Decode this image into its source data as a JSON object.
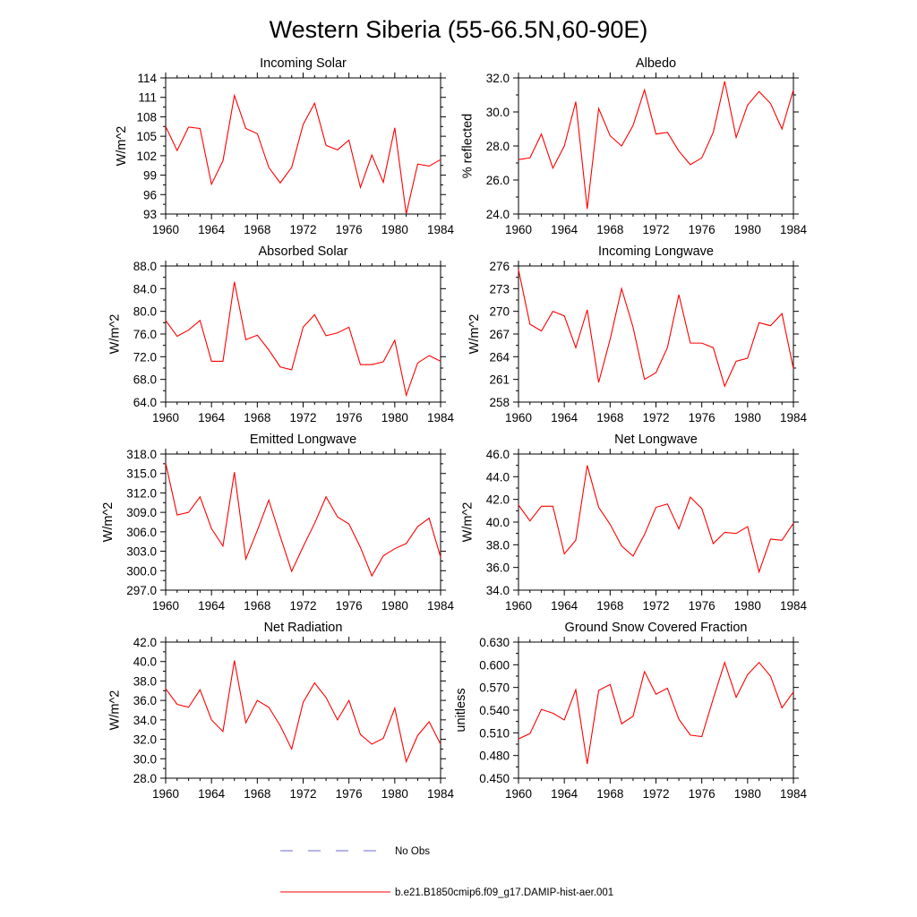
{
  "figure": {
    "title": "Western Siberia (55-66.5N,60-90E)"
  },
  "legend": {
    "items": [
      {
        "label": "No Obs",
        "color": "#6a6ad8",
        "style": "dashed"
      },
      {
        "label": "b.e21.B1850cmip6.f09_g17.DAMIP-hist-aer.001",
        "color": "#ff0000",
        "style": "solid"
      }
    ]
  },
  "chart_data": [
    {
      "type": "line",
      "title": "Incoming Solar",
      "xlabel": "",
      "ylabel": "W/m^2",
      "xlim": [
        1960,
        1984
      ],
      "ylim": [
        93,
        114
      ],
      "xticks": [
        "1960",
        "1964",
        "1968",
        "1972",
        "1976",
        "1980",
        "1984"
      ],
      "yticks": [
        "93",
        "96",
        "99",
        "102",
        "105",
        "108",
        "111",
        "114"
      ],
      "x": [
        1960,
        1961,
        1962,
        1963,
        1964,
        1965,
        1966,
        1967,
        1968,
        1969,
        1970,
        1971,
        1972,
        1973,
        1974,
        1975,
        1976,
        1977,
        1978,
        1979,
        1980,
        1981,
        1982,
        1983,
        1984
      ],
      "series": [
        {
          "color": "#ff0000",
          "values": [
            106.5,
            102.8,
            106.4,
            106.2,
            97.6,
            101.2,
            111.3,
            106.2,
            105.4,
            100.2,
            97.8,
            100.2,
            106.8,
            110.1,
            103.6,
            102.9,
            104.4,
            97.1,
            102.1,
            97.9,
            106.3,
            93.0,
            100.7,
            100.4,
            101.4
          ]
        }
      ]
    },
    {
      "type": "line",
      "title": "Albedo",
      "xlabel": "",
      "ylabel": "% reflected",
      "xlim": [
        1960,
        1984
      ],
      "ylim": [
        24.0,
        32.0
      ],
      "xticks": [
        "1960",
        "1964",
        "1968",
        "1972",
        "1976",
        "1980",
        "1984"
      ],
      "yticks": [
        "24.0",
        "26.0",
        "28.0",
        "30.0",
        "32.0"
      ],
      "x": [
        1960,
        1961,
        1962,
        1963,
        1964,
        1965,
        1966,
        1967,
        1968,
        1969,
        1970,
        1971,
        1972,
        1973,
        1974,
        1975,
        1976,
        1977,
        1978,
        1979,
        1980,
        1981,
        1982,
        1983,
        1984
      ],
      "series": [
        {
          "color": "#ff0000",
          "values": [
            27.2,
            27.3,
            28.7,
            26.7,
            28.0,
            30.6,
            24.3,
            30.2,
            28.6,
            28.0,
            29.2,
            31.3,
            28.7,
            28.8,
            27.7,
            26.9,
            27.3,
            28.8,
            31.8,
            28.5,
            30.4,
            31.2,
            30.5,
            29.0,
            31.3
          ]
        }
      ]
    },
    {
      "type": "line",
      "title": "Absorbed Solar",
      "xlabel": "",
      "ylabel": "W/m^2",
      "xlim": [
        1960,
        1984
      ],
      "ylim": [
        64.0,
        88.0
      ],
      "xticks": [
        "1960",
        "1964",
        "1968",
        "1972",
        "1976",
        "1980",
        "1984"
      ],
      "yticks": [
        "64.0",
        "68.0",
        "72.0",
        "76.0",
        "80.0",
        "84.0",
        "88.0"
      ],
      "x": [
        1960,
        1961,
        1962,
        1963,
        1964,
        1965,
        1966,
        1967,
        1968,
        1969,
        1970,
        1971,
        1972,
        1973,
        1974,
        1975,
        1976,
        1977,
        1978,
        1979,
        1980,
        1981,
        1982,
        1983,
        1984
      ],
      "series": [
        {
          "color": "#ff0000",
          "values": [
            78.4,
            75.6,
            76.7,
            78.4,
            71.2,
            71.2,
            85.2,
            75.0,
            75.8,
            73.2,
            70.2,
            69.7,
            77.2,
            79.4,
            75.7,
            76.2,
            77.2,
            70.6,
            70.6,
            71.1,
            74.9,
            65.2,
            70.9,
            72.2,
            71.2
          ]
        }
      ]
    },
    {
      "type": "line",
      "title": "Incoming Longwave",
      "xlabel": "",
      "ylabel": "W/m^2",
      "xlim": [
        1960,
        1984
      ],
      "ylim": [
        258,
        276
      ],
      "xticks": [
        "1960",
        "1964",
        "1968",
        "1972",
        "1976",
        "1980",
        "1984"
      ],
      "yticks": [
        "258",
        "261",
        "264",
        "267",
        "270",
        "273",
        "276"
      ],
      "x": [
        1960,
        1961,
        1962,
        1963,
        1964,
        1965,
        1966,
        1967,
        1968,
        1969,
        1970,
        1971,
        1972,
        1973,
        1974,
        1975,
        1976,
        1977,
        1978,
        1979,
        1980,
        1981,
        1982,
        1983,
        1984
      ],
      "series": [
        {
          "color": "#ff0000",
          "values": [
            275.5,
            268.3,
            267.4,
            270.0,
            269.4,
            265.2,
            270.2,
            260.6,
            266.3,
            273.0,
            267.9,
            261.0,
            261.9,
            265.2,
            272.2,
            265.8,
            265.8,
            265.2,
            260.1,
            263.4,
            263.8,
            268.5,
            268.1,
            269.7,
            262.4
          ]
        }
      ]
    },
    {
      "type": "line",
      "title": "Emitted Longwave",
      "xlabel": "",
      "ylabel": "W/m^2",
      "xlim": [
        1960,
        1984
      ],
      "ylim": [
        297.0,
        318.0
      ],
      "xticks": [
        "1960",
        "1964",
        "1968",
        "1972",
        "1976",
        "1980",
        "1984"
      ],
      "yticks": [
        "297.0",
        "300.0",
        "303.0",
        "306.0",
        "309.0",
        "312.0",
        "315.0",
        "318.0"
      ],
      "x": [
        1960,
        1961,
        1962,
        1963,
        1964,
        1965,
        1966,
        1967,
        1968,
        1969,
        1970,
        1971,
        1972,
        1973,
        1974,
        1975,
        1976,
        1977,
        1978,
        1979,
        1980,
        1981,
        1982,
        1983,
        1984
      ],
      "series": [
        {
          "color": "#ff0000",
          "values": [
            316.6,
            308.6,
            309.0,
            311.4,
            306.5,
            303.8,
            315.2,
            301.8,
            306.2,
            310.9,
            305.3,
            299.9,
            303.7,
            307.3,
            311.4,
            308.3,
            307.2,
            303.6,
            299.2,
            302.3,
            303.4,
            304.2,
            306.8,
            308.1,
            302.1
          ]
        }
      ]
    },
    {
      "type": "line",
      "title": "Net Longwave",
      "xlabel": "",
      "ylabel": "W/m^2",
      "xlim": [
        1960,
        1984
      ],
      "ylim": [
        34.0,
        46.0
      ],
      "xticks": [
        "1960",
        "1964",
        "1968",
        "1972",
        "1976",
        "1980",
        "1984"
      ],
      "yticks": [
        "34.0",
        "36.0",
        "38.0",
        "40.0",
        "42.0",
        "44.0",
        "46.0"
      ],
      "x": [
        1960,
        1961,
        1962,
        1963,
        1964,
        1965,
        1966,
        1967,
        1968,
        1969,
        1970,
        1971,
        1972,
        1973,
        1974,
        1975,
        1976,
        1977,
        1978,
        1979,
        1980,
        1981,
        1982,
        1983,
        1984
      ],
      "series": [
        {
          "color": "#ff0000",
          "values": [
            41.5,
            40.1,
            41.4,
            41.4,
            37.2,
            38.4,
            45.0,
            41.3,
            39.8,
            37.9,
            37.0,
            38.9,
            41.3,
            41.6,
            39.4,
            42.2,
            41.2,
            38.1,
            39.1,
            39.0,
            39.6,
            35.6,
            38.5,
            38.4,
            39.9
          ]
        }
      ]
    },
    {
      "type": "line",
      "title": "Net Radiation",
      "xlabel": "",
      "ylabel": "W/m^2",
      "xlim": [
        1960,
        1984
      ],
      "ylim": [
        28.0,
        42.0
      ],
      "xticks": [
        "1960",
        "1964",
        "1968",
        "1972",
        "1976",
        "1980",
        "1984"
      ],
      "yticks": [
        "28.0",
        "30.0",
        "32.0",
        "34.0",
        "36.0",
        "38.0",
        "40.0",
        "42.0"
      ],
      "x": [
        1960,
        1961,
        1962,
        1963,
        1964,
        1965,
        1966,
        1967,
        1968,
        1969,
        1970,
        1971,
        1972,
        1973,
        1974,
        1975,
        1976,
        1977,
        1978,
        1979,
        1980,
        1981,
        1982,
        1983,
        1984
      ],
      "series": [
        {
          "color": "#ff0000",
          "values": [
            37.2,
            35.6,
            35.3,
            37.1,
            34.0,
            32.8,
            40.1,
            33.7,
            36.0,
            35.3,
            33.4,
            31.0,
            35.8,
            37.8,
            36.3,
            34.0,
            36.0,
            32.5,
            31.5,
            32.1,
            35.2,
            29.7,
            32.4,
            33.8,
            31.5
          ]
        }
      ]
    },
    {
      "type": "line",
      "title": "Ground Snow Covered Fraction",
      "xlabel": "",
      "ylabel": "unitless",
      "xlim": [
        1960,
        1984
      ],
      "ylim": [
        0.45,
        0.63
      ],
      "xticks": [
        "1960",
        "1964",
        "1968",
        "1972",
        "1976",
        "1980",
        "1984"
      ],
      "yticks": [
        "0.450",
        "0.480",
        "0.510",
        "0.540",
        "0.570",
        "0.600",
        "0.630"
      ],
      "x": [
        1960,
        1961,
        1962,
        1963,
        1964,
        1965,
        1966,
        1967,
        1968,
        1969,
        1970,
        1971,
        1972,
        1973,
        1974,
        1975,
        1976,
        1977,
        1978,
        1979,
        1980,
        1981,
        1982,
        1983,
        1984
      ],
      "series": [
        {
          "color": "#ff0000",
          "values": [
            0.502,
            0.509,
            0.541,
            0.536,
            0.527,
            0.567,
            0.469,
            0.566,
            0.574,
            0.522,
            0.532,
            0.591,
            0.561,
            0.569,
            0.528,
            0.507,
            0.505,
            0.555,
            0.603,
            0.557,
            0.587,
            0.603,
            0.585,
            0.543,
            0.564
          ]
        }
      ]
    }
  ]
}
